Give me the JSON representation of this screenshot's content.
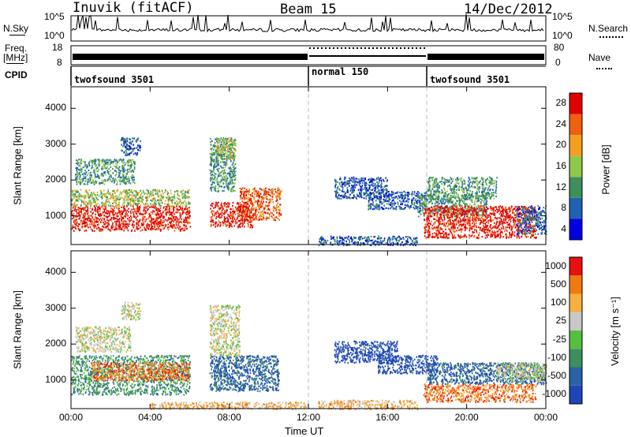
{
  "header": {
    "station": "Inuvik (fitACF)",
    "beam": "Beam 15",
    "date": "14/Dec/2012"
  },
  "top_strip": {
    "nsky_label": "N.Sky",
    "nsearch_label": "N.Search",
    "freq_label_1": "Freq.",
    "freq_label_2": "[MHz]",
    "nave_label": "Nave",
    "cpid_label": "CPID",
    "nsky_ticks": [
      "10^5",
      "10^0"
    ],
    "nsearch_ticks": [
      "10^5",
      "10^0"
    ],
    "freq_ticks": [
      "18",
      "8"
    ],
    "nave_ticks": [
      "80",
      "0"
    ]
  },
  "cpid_segments": [
    {
      "label": "twofsound 3501",
      "start_hr": 0,
      "end_hr": 12
    },
    {
      "label": "normal 150",
      "start_hr": 12,
      "end_hr": 18
    },
    {
      "label": "twofsound 3501",
      "start_hr": 18,
      "end_hr": 24
    }
  ],
  "chart_data": [
    {
      "type": "heatmap",
      "title": "",
      "xlabel": "Time UT",
      "ylabel": "Slant Range [km]",
      "x_ticks": [
        "00:00",
        "04:00",
        "08:00",
        "12:00",
        "16:00",
        "20:00",
        "00:00"
      ],
      "xlim_hours": [
        0,
        24
      ],
      "y_ticks": [
        1000,
        2000,
        3000,
        4000
      ],
      "ylim": [
        200,
        4600
      ],
      "colorbar": {
        "label": "Power [dB]",
        "ticks": [
          "4",
          "8",
          "12",
          "16",
          "20",
          "24",
          "28"
        ],
        "colors": [
          "#0000e0",
          "#1f63b0",
          "#3d8f5c",
          "#8fc84b",
          "#f3a020",
          "#f06010",
          "#e00000"
        ]
      },
      "scatter_regions": [
        {
          "t0": 0.0,
          "t1": 6.0,
          "r0": 600,
          "r1": 1300,
          "level": 6
        },
        {
          "t0": 0.0,
          "t1": 6.0,
          "r0": 1300,
          "r1": 1750,
          "level": 3
        },
        {
          "t0": 0.2,
          "t1": 3.2,
          "r0": 1900,
          "r1": 2600,
          "level": 2
        },
        {
          "t0": 2.5,
          "t1": 3.5,
          "r0": 2700,
          "r1": 3200,
          "level": 1
        },
        {
          "t0": 7.0,
          "t1": 9.2,
          "r0": 700,
          "r1": 1400,
          "level": 6
        },
        {
          "t0": 8.5,
          "t1": 10.6,
          "r0": 900,
          "r1": 1800,
          "level": 5
        },
        {
          "t0": 7.0,
          "t1": 8.3,
          "r0": 1700,
          "r1": 3200,
          "level": 2
        },
        {
          "t0": 7.3,
          "t1": 8.3,
          "r0": 2600,
          "r1": 3200,
          "level": 3
        },
        {
          "t0": 12.5,
          "t1": 17.5,
          "r0": 200,
          "r1": 450,
          "level": 1
        },
        {
          "t0": 13.3,
          "t1": 16.0,
          "r0": 1500,
          "r1": 2100,
          "level": 1
        },
        {
          "t0": 15.0,
          "t1": 18.0,
          "r0": 1200,
          "r1": 1700,
          "level": 1
        },
        {
          "t0": 17.5,
          "t1": 21.0,
          "r0": 1000,
          "r1": 1600,
          "level": 2
        },
        {
          "t0": 18.0,
          "t1": 21.5,
          "r0": 1500,
          "r1": 2100,
          "level": 2
        },
        {
          "t0": 17.8,
          "t1": 23.5,
          "r0": 400,
          "r1": 1300,
          "level": 6
        },
        {
          "t0": 22.5,
          "t1": 24.0,
          "r0": 500,
          "r1": 1300,
          "level": 1
        }
      ]
    },
    {
      "type": "heatmap",
      "title": "",
      "xlabel": "Time UT",
      "ylabel": "Slant Range [km]",
      "x_ticks": [
        "00:00",
        "04:00",
        "08:00",
        "12:00",
        "16:00",
        "20:00",
        "00:00"
      ],
      "xlim_hours": [
        0,
        24
      ],
      "y_ticks": [
        1000,
        2000,
        3000,
        4000
      ],
      "ylim": [
        200,
        4600
      ],
      "colorbar": {
        "label": "Velocity [m s⁻¹]",
        "ticks": [
          "1000",
          "500",
          "100",
          "25",
          "-25",
          "-100",
          "-500",
          "-1000"
        ],
        "colors": [
          "#1f45b8",
          "#2a62a8",
          "#3d8f5c",
          "#55c040",
          "#c8c8c8",
          "#f5b040",
          "#f07a10",
          "#e81010"
        ]
      },
      "scatter_regions": [
        {
          "t0": 0.0,
          "t1": 6.0,
          "r0": 600,
          "r1": 1700,
          "level": 2
        },
        {
          "t0": 1.0,
          "t1": 6.0,
          "r0": 1000,
          "r1": 1500,
          "level": 6
        },
        {
          "t0": 0.2,
          "t1": 3.0,
          "r0": 1800,
          "r1": 2500,
          "level": 4
        },
        {
          "t0": 2.5,
          "t1": 3.5,
          "r0": 2700,
          "r1": 3200,
          "level": 4
        },
        {
          "t0": 7.0,
          "t1": 10.5,
          "r0": 700,
          "r1": 1700,
          "level": 1
        },
        {
          "t0": 7.0,
          "t1": 8.5,
          "r0": 1700,
          "r1": 3100,
          "level": 4
        },
        {
          "t0": 4.0,
          "t1": 12.0,
          "r0": 200,
          "r1": 400,
          "level": 5
        },
        {
          "t0": 12.5,
          "t1": 17.5,
          "r0": 200,
          "r1": 450,
          "level": 5
        },
        {
          "t0": 13.3,
          "t1": 16.5,
          "r0": 1500,
          "r1": 2100,
          "level": 0
        },
        {
          "t0": 15.5,
          "t1": 18.5,
          "r0": 1200,
          "r1": 1700,
          "level": 0
        },
        {
          "t0": 18.0,
          "t1": 24.0,
          "r0": 900,
          "r1": 1500,
          "level": 1
        },
        {
          "t0": 17.8,
          "t1": 23.5,
          "r0": 400,
          "r1": 900,
          "level": 6
        },
        {
          "t0": 21.5,
          "t1": 24.0,
          "r0": 1000,
          "r1": 1500,
          "level": 4
        }
      ]
    }
  ]
}
